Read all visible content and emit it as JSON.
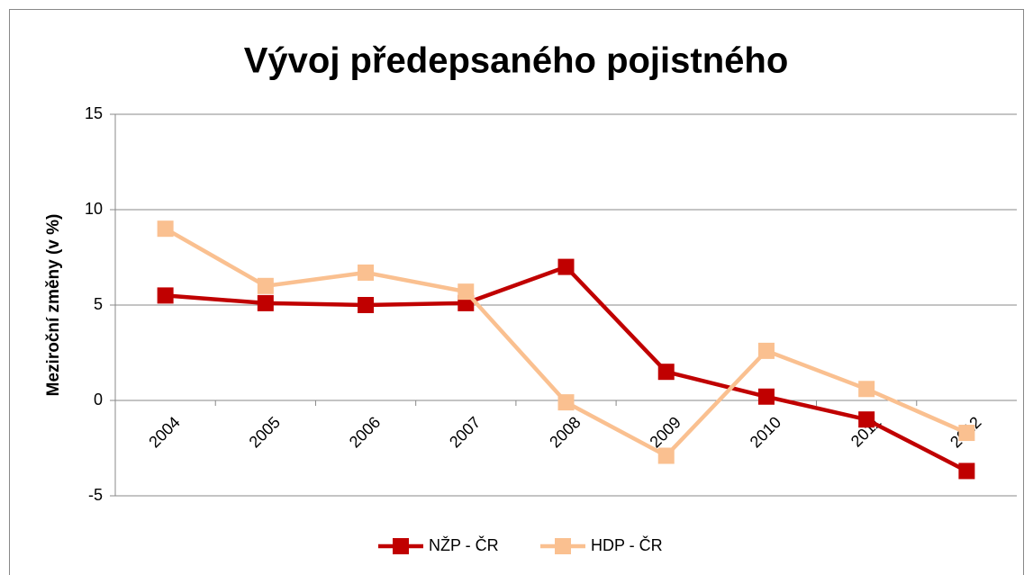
{
  "chart_data": {
    "type": "line",
    "title": "Vývoj předepsaného pojistného",
    "y_label": "Meziroční změny (v %)",
    "categories": [
      "2004",
      "2005",
      "2006",
      "2007",
      "2008",
      "2009",
      "2010",
      "2011",
      "2012"
    ],
    "series": [
      {
        "name": "NŽP - ČR",
        "color": "#c00000",
        "values": [
          5.5,
          5.1,
          5.0,
          5.1,
          7.0,
          1.5,
          0.2,
          -1.0,
          -3.7
        ]
      },
      {
        "name": "HDP - ČR",
        "color": "#fac090",
        "values": [
          9.0,
          6.0,
          6.7,
          5.7,
          -0.1,
          -2.9,
          2.6,
          0.6,
          -1.7
        ]
      }
    ],
    "ylim": [
      -5,
      15
    ],
    "yticks": [
      -5,
      0,
      5,
      10,
      15
    ],
    "grid": true,
    "legend": "bottom"
  }
}
